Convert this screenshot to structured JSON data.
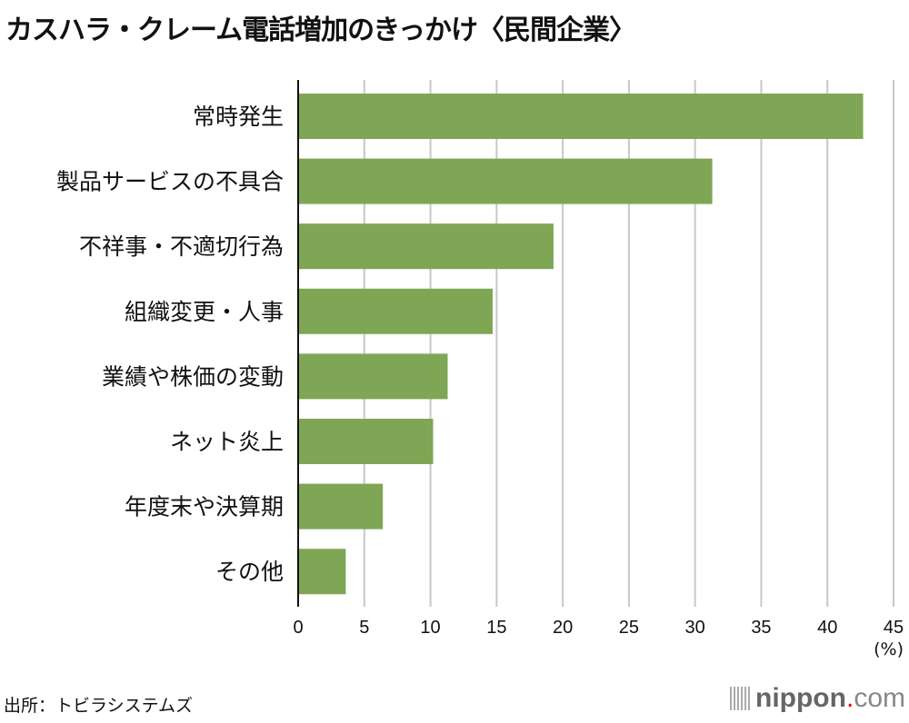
{
  "chart_data": {
    "type": "bar",
    "orientation": "horizontal",
    "title": "カスハラ・クレーム電話増加のきっかけ〈民間企業〉",
    "categories": [
      "常時発生",
      "製品サービスの不具合",
      "不祥事・不適切行為",
      "組織変更・人事",
      "業績や株価の変動",
      "ネット炎上",
      "年度末や決算期",
      "その他"
    ],
    "values": [
      42.7,
      31.3,
      19.3,
      14.7,
      11.3,
      10.2,
      6.4,
      3.6
    ],
    "xlim": [
      0,
      45
    ],
    "xticks": [
      0,
      5,
      10,
      15,
      20,
      25,
      30,
      35,
      40,
      45
    ],
    "unit": "(%)",
    "grid": true,
    "bar_color": "#7ea655"
  },
  "source": "出所：トビラシステムズ",
  "logo": {
    "name": "nippon",
    "dot": ".",
    "suffix": "com"
  }
}
